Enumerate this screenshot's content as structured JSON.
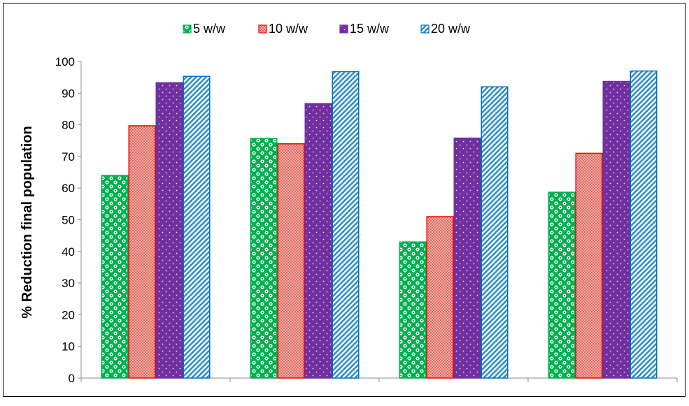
{
  "chart_data": {
    "type": "bar",
    "title": "",
    "xlabel": "",
    "ylabel": "% Reduction final population",
    "ylim": [
      0,
      100
    ],
    "yticks": [
      0,
      10,
      20,
      30,
      40,
      50,
      60,
      70,
      80,
      90,
      100
    ],
    "grid": false,
    "legend_position": "top",
    "categories": [
      "",
      "",
      "",
      ""
    ],
    "series": [
      {
        "name": "5 w/w",
        "values": [
          64,
          75.7,
          43,
          58.7
        ],
        "color": "#00b050",
        "pattern": "checker-circles"
      },
      {
        "name": "10 w/w",
        "values": [
          79.7,
          74,
          51,
          71
        ],
        "color": "#ff0000",
        "pattern": "crosshatch"
      },
      {
        "name": "15 w/w",
        "values": [
          93.3,
          86.7,
          75.8,
          93.7
        ],
        "color": "#7030a0",
        "pattern": "dots"
      },
      {
        "name": "20 w/w",
        "values": [
          95.3,
          96.8,
          92,
          97
        ],
        "color": "#0070c0",
        "pattern": "diagonal-stripes"
      }
    ]
  }
}
